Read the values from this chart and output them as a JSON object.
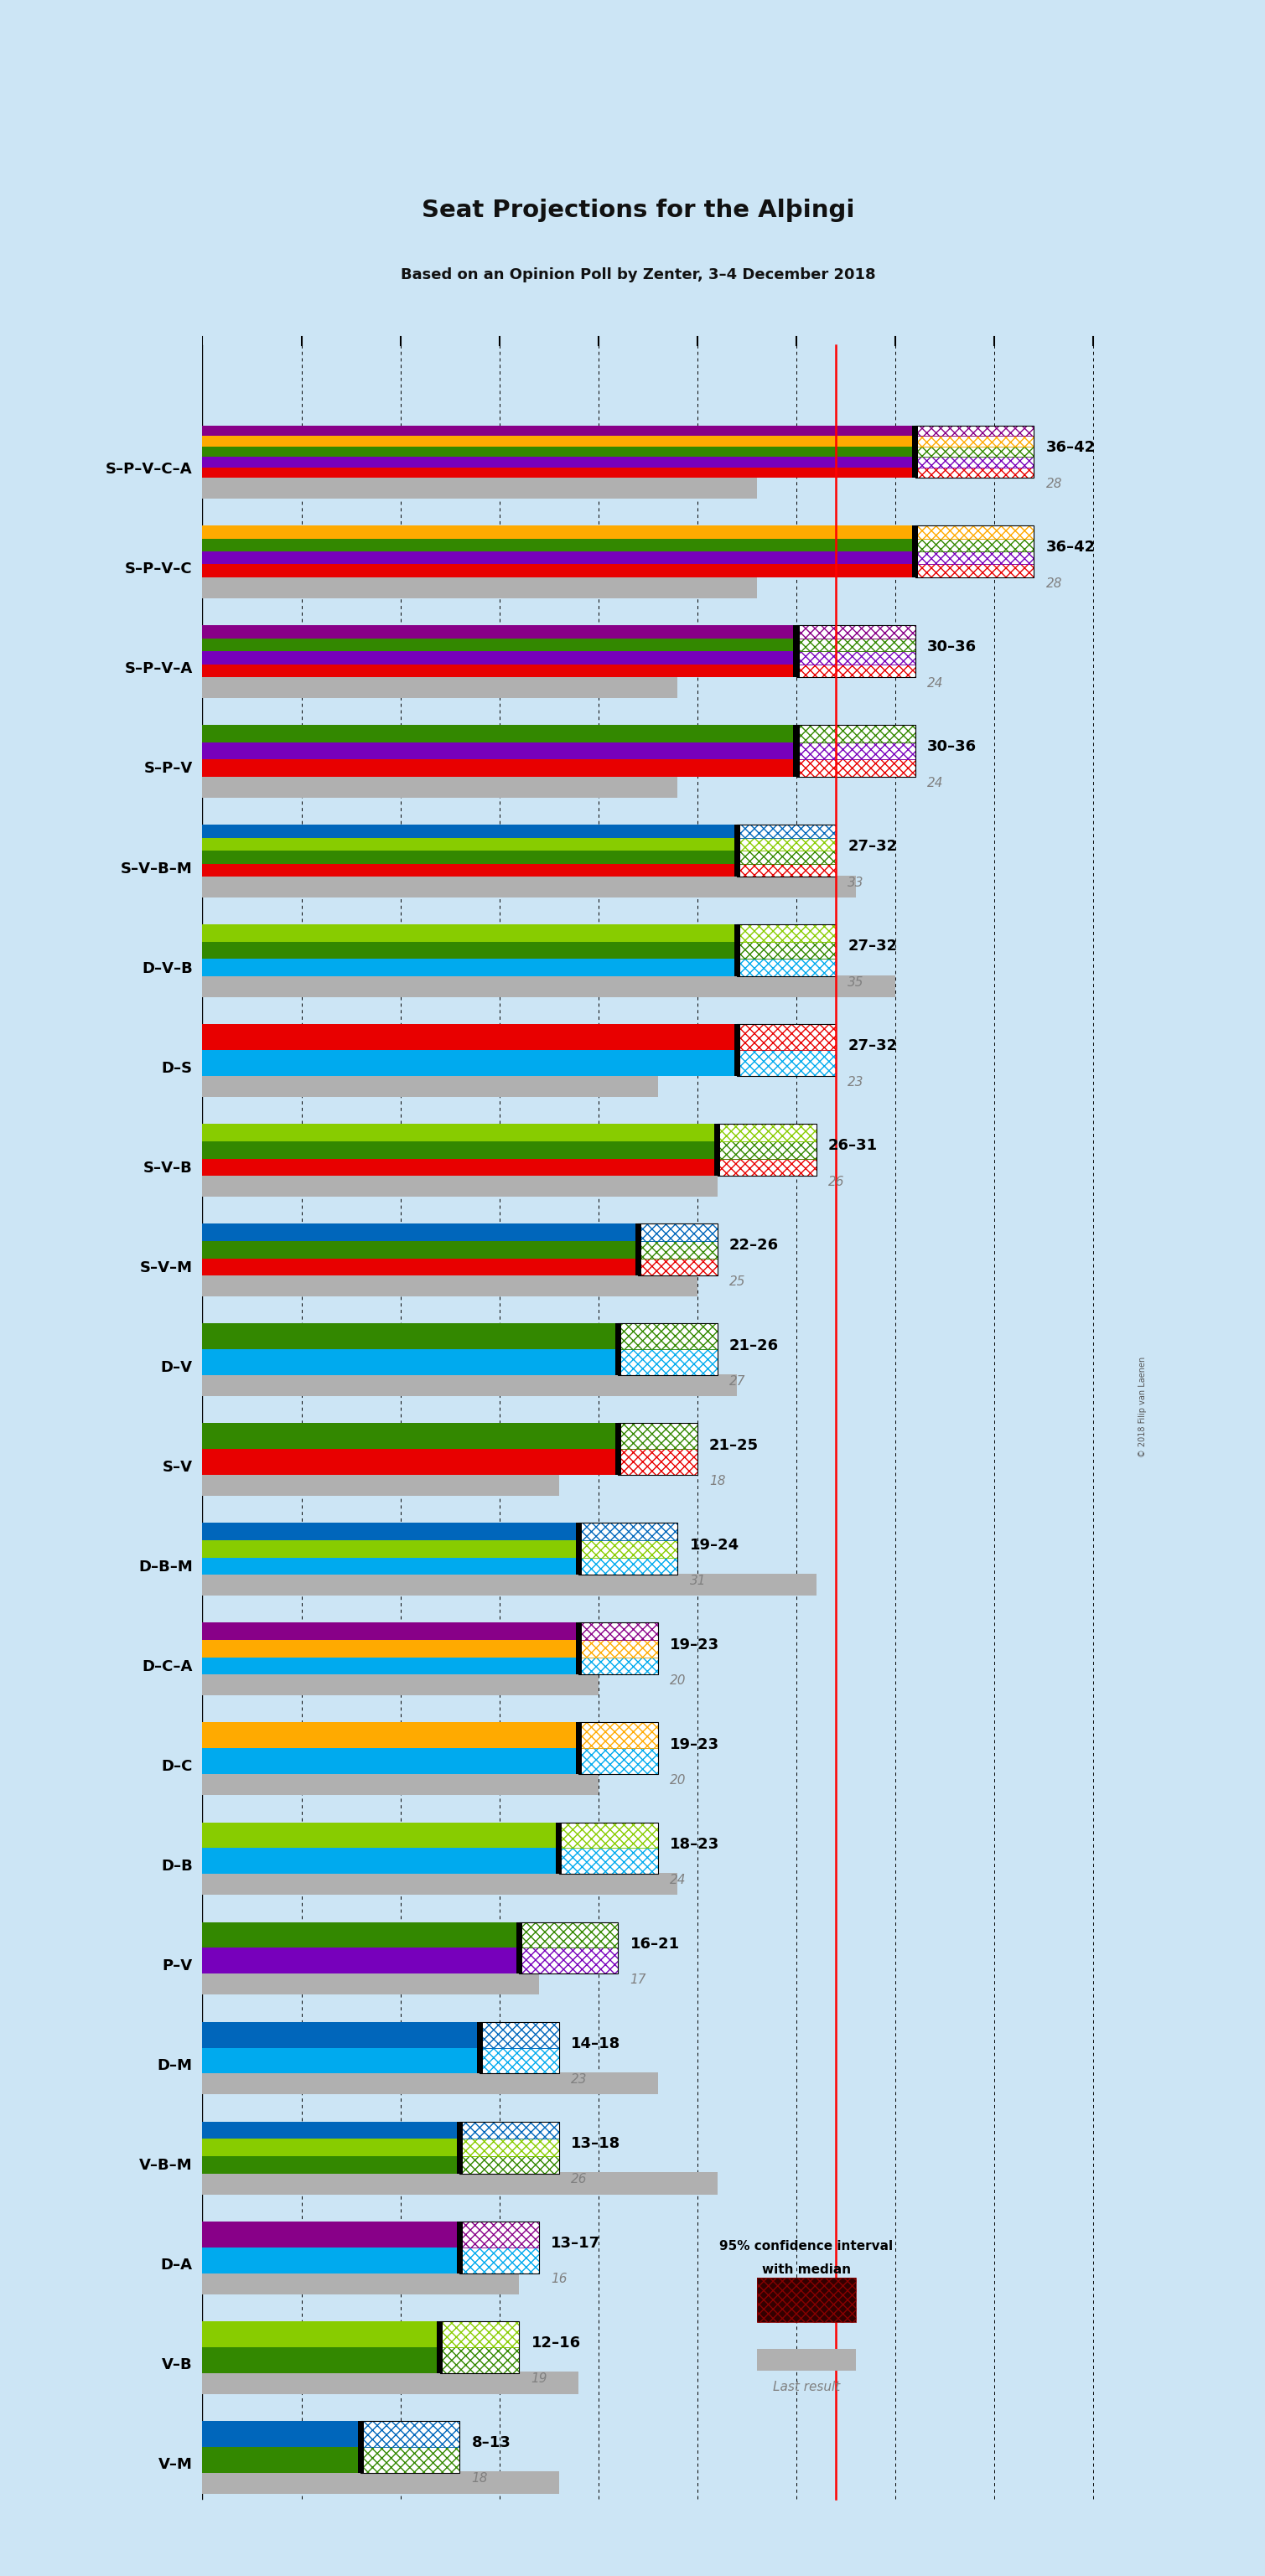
{
  "title": "Seat Projections for the Alþingi",
  "subtitle": "Based on an Opinion Poll by Zenter, 3–4 December 2018",
  "copyright": "© 2018 Filip van Laenen",
  "background_color": "#cce5f5",
  "coalitions": [
    {
      "name": "S–P–V–C–A",
      "low": 36,
      "high": 42,
      "last": 28,
      "colors": [
        "#e80000",
        "#7700bb",
        "#338800",
        "#ffaa00",
        "#880088"
      ]
    },
    {
      "name": "S–P–V–C",
      "low": 36,
      "high": 42,
      "last": 28,
      "colors": [
        "#e80000",
        "#7700bb",
        "#338800",
        "#ffaa00"
      ]
    },
    {
      "name": "S–P–V–A",
      "low": 30,
      "high": 36,
      "last": 24,
      "colors": [
        "#e80000",
        "#7700bb",
        "#338800",
        "#880088"
      ]
    },
    {
      "name": "S–P–V",
      "low": 30,
      "high": 36,
      "last": 24,
      "colors": [
        "#e80000",
        "#7700bb",
        "#338800"
      ]
    },
    {
      "name": "S–V–B–M",
      "low": 27,
      "high": 32,
      "last": 33,
      "colors": [
        "#e80000",
        "#338800",
        "#88cc00",
        "#0066bb"
      ]
    },
    {
      "name": "D–V–B",
      "low": 27,
      "high": 32,
      "last": 35,
      "colors": [
        "#00aaee",
        "#338800",
        "#88cc00"
      ]
    },
    {
      "name": "D–S",
      "low": 27,
      "high": 32,
      "last": 23,
      "colors": [
        "#00aaee",
        "#e80000"
      ]
    },
    {
      "name": "S–V–B",
      "low": 26,
      "high": 31,
      "last": 26,
      "colors": [
        "#e80000",
        "#338800",
        "#88cc00"
      ]
    },
    {
      "name": "S–V–M",
      "low": 22,
      "high": 26,
      "last": 25,
      "colors": [
        "#e80000",
        "#338800",
        "#0066bb"
      ]
    },
    {
      "name": "D–V",
      "low": 21,
      "high": 26,
      "last": 27,
      "colors": [
        "#00aaee",
        "#338800"
      ]
    },
    {
      "name": "S–V",
      "low": 21,
      "high": 25,
      "last": 18,
      "colors": [
        "#e80000",
        "#338800"
      ]
    },
    {
      "name": "D–B–M",
      "low": 19,
      "high": 24,
      "last": 31,
      "colors": [
        "#00aaee",
        "#88cc00",
        "#0066bb"
      ]
    },
    {
      "name": "D–C–A",
      "low": 19,
      "high": 23,
      "last": 20,
      "colors": [
        "#00aaee",
        "#ffaa00",
        "#880088"
      ]
    },
    {
      "name": "D–C",
      "low": 19,
      "high": 23,
      "last": 20,
      "colors": [
        "#00aaee",
        "#ffaa00"
      ]
    },
    {
      "name": "D–B",
      "low": 18,
      "high": 23,
      "last": 24,
      "colors": [
        "#00aaee",
        "#88cc00"
      ]
    },
    {
      "name": "P–V",
      "low": 16,
      "high": 21,
      "last": 17,
      "colors": [
        "#7700bb",
        "#338800"
      ]
    },
    {
      "name": "D–M",
      "low": 14,
      "high": 18,
      "last": 23,
      "colors": [
        "#00aaee",
        "#0066bb"
      ]
    },
    {
      "name": "V–B–M",
      "low": 13,
      "high": 18,
      "last": 26,
      "colors": [
        "#338800",
        "#88cc00",
        "#0066bb"
      ]
    },
    {
      "name": "D–A",
      "low": 13,
      "high": 17,
      "last": 16,
      "colors": [
        "#00aaee",
        "#880088"
      ]
    },
    {
      "name": "V–B",
      "low": 12,
      "high": 16,
      "last": 19,
      "colors": [
        "#338800",
        "#88cc00"
      ]
    },
    {
      "name": "V–M",
      "low": 8,
      "high": 13,
      "last": 18,
      "colors": [
        "#338800",
        "#0066bb"
      ]
    }
  ],
  "xmax": 46,
  "majority_line": 32,
  "tick_positions": [
    0,
    5,
    10,
    15,
    20,
    25,
    30,
    35,
    40,
    45
  ]
}
